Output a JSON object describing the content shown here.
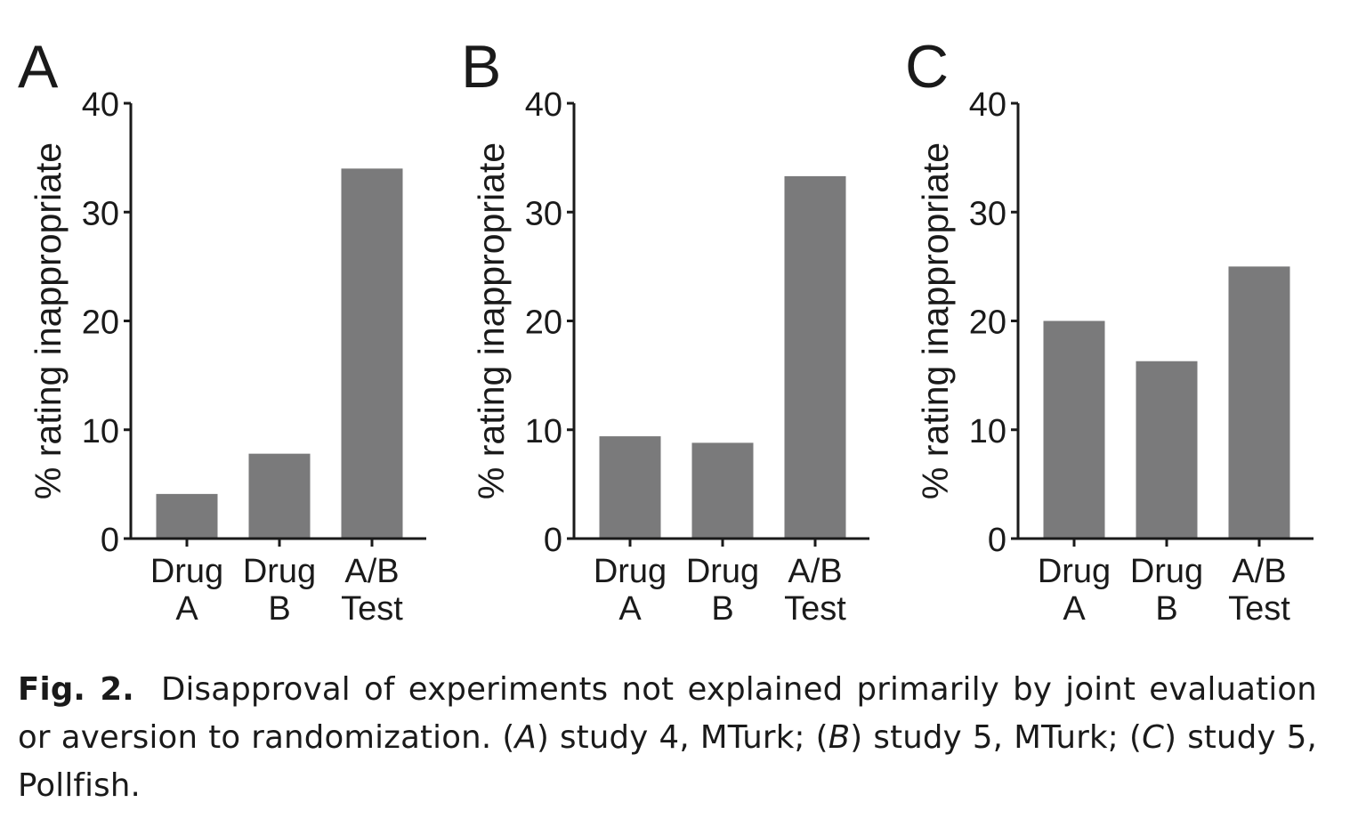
{
  "chart_data": [
    {
      "type": "bar",
      "panel_label": "A",
      "ylabel": "% rating inappropriate",
      "ylim": [
        0,
        40
      ],
      "yticks": [
        "0",
        "10",
        "20",
        "30",
        "40"
      ],
      "categories": [
        [
          "Drug",
          "A"
        ],
        [
          "Drug",
          "B"
        ],
        [
          "A/B",
          "Test"
        ]
      ],
      "values": [
        4.1,
        7.8,
        34.0
      ],
      "bar_color": "#7a7a7b"
    },
    {
      "type": "bar",
      "panel_label": "B",
      "ylabel": "% rating inappropriate",
      "ylim": [
        0,
        40
      ],
      "yticks": [
        "0",
        "10",
        "20",
        "30",
        "40"
      ],
      "categories": [
        [
          "Drug",
          "A"
        ],
        [
          "Drug",
          "B"
        ],
        [
          "A/B",
          "Test"
        ]
      ],
      "values": [
        9.4,
        8.8,
        33.3
      ],
      "bar_color": "#7a7a7b"
    },
    {
      "type": "bar",
      "panel_label": "C",
      "ylabel": "% rating inappropriate",
      "ylim": [
        0,
        40
      ],
      "yticks": [
        "0",
        "10",
        "20",
        "30",
        "40"
      ],
      "categories": [
        [
          "Drug",
          "A"
        ],
        [
          "Drug",
          "B"
        ],
        [
          "A/B",
          "Test"
        ]
      ],
      "values": [
        20.0,
        16.3,
        25.0
      ],
      "bar_color": "#7a7a7b"
    }
  ],
  "caption": {
    "label": "Fig. 2.",
    "sentence1": "Disapproval of experiments not explained primarily by joint evaluation or aversion to randomization.",
    "part_a_open": "(",
    "part_a_letter": "A",
    "part_a_text": ") study 4, MTurk; (",
    "part_b_letter": "B",
    "part_b_text": ") study 5, MTurk;",
    "part_c_open": "(",
    "part_c_letter": "C",
    "part_c_text": ") study 5, Pollfish."
  }
}
